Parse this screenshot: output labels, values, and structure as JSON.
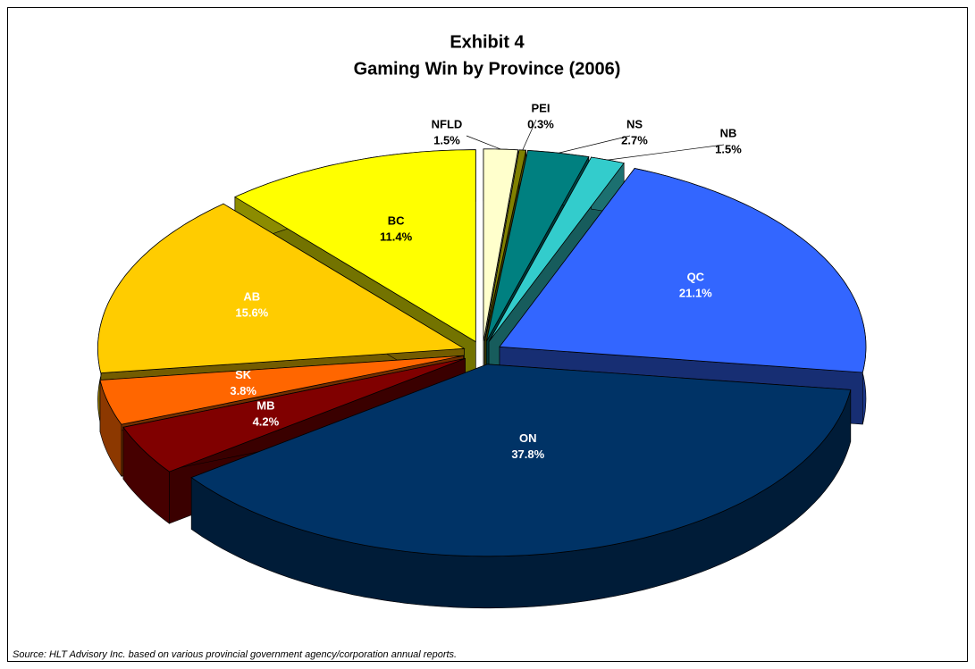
{
  "chart_data": {
    "type": "pie",
    "title": "Exhibit 4",
    "subtitle": "Gaming Win by Province (2006)",
    "categories": [
      "NFLD",
      "PEI",
      "NS",
      "NB",
      "QC",
      "ON",
      "MB",
      "SK",
      "AB",
      "BC"
    ],
    "values": [
      1.5,
      0.3,
      2.7,
      1.5,
      21.1,
      37.8,
      4.2,
      3.8,
      15.6,
      11.4
    ],
    "value_labels": [
      "1.5%",
      "0.3%",
      "2.7%",
      "1.5%",
      "21.1%",
      "37.8%",
      "4.2%",
      "3.8%",
      "15.6%",
      "11.4%"
    ],
    "colors": [
      "#ffffcc",
      "#808000",
      "#008080",
      "#33cccc",
      "#3366ff",
      "#003366",
      "#800000",
      "#ff6600",
      "#ffcc00",
      "#ffff00"
    ],
    "source": "Source: HLT Advisory Inc. based on various provincial government agency/corporation annual reports."
  }
}
